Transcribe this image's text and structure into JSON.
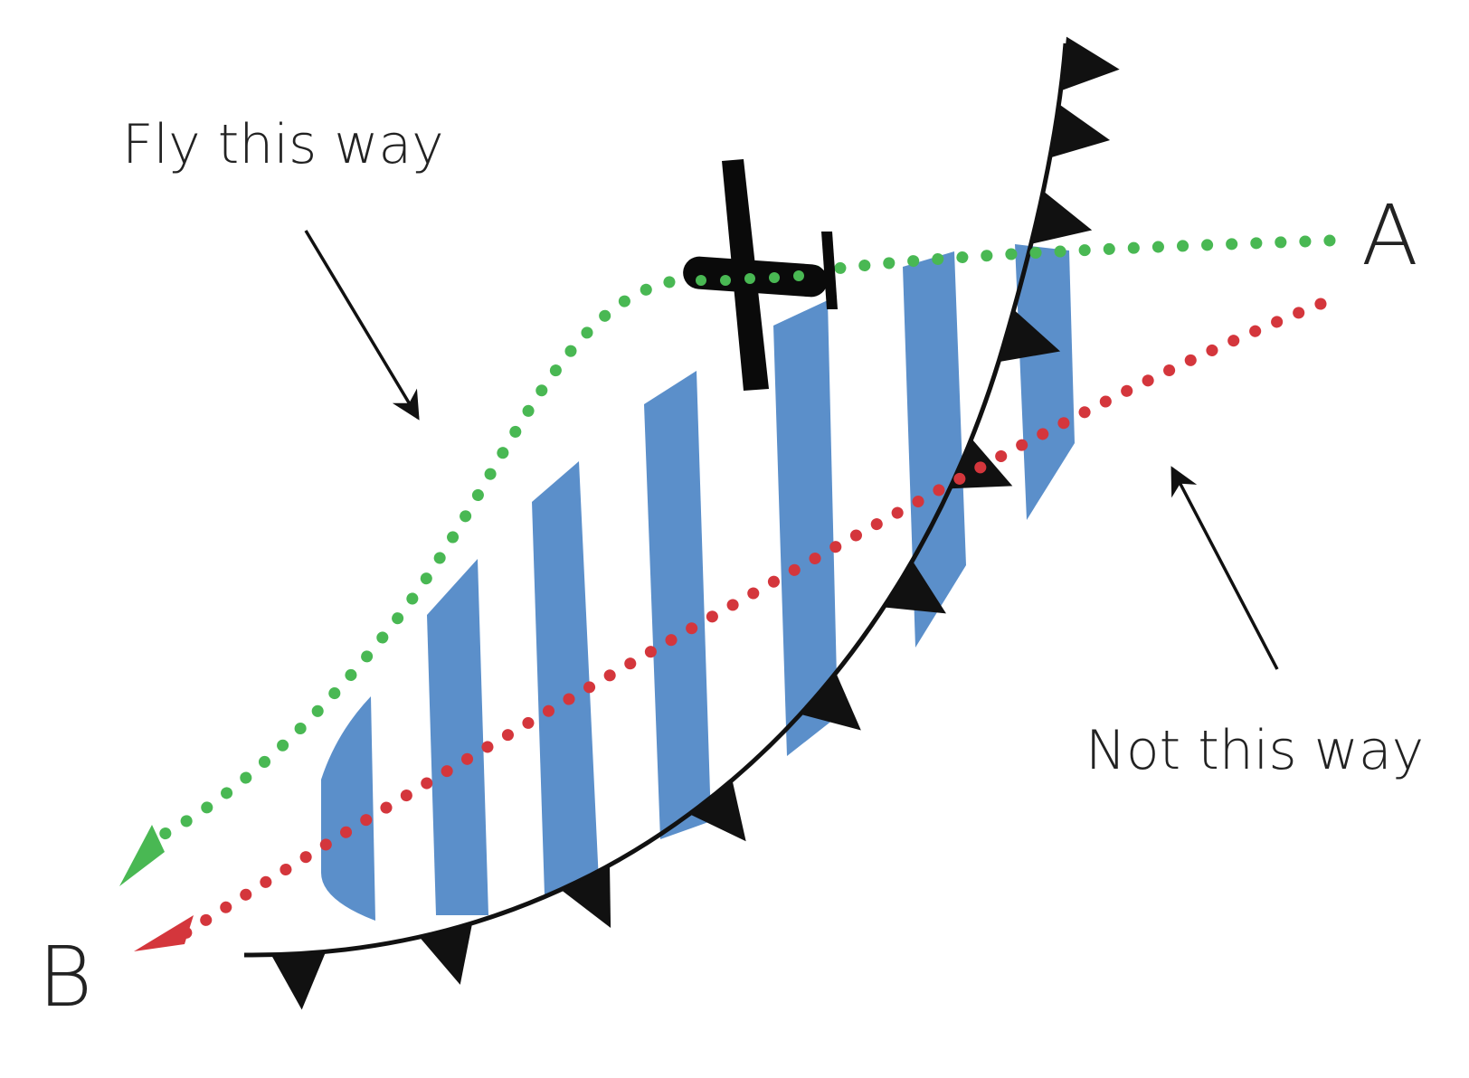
{
  "labels": {
    "fly_this_way": "Fly this way",
    "not_this_way": "Not this way",
    "point_a": "A",
    "point_b": "B"
  },
  "colors": {
    "good_route": "#49b853",
    "bad_route": "#d4363c",
    "weather_band": "#5b8fca",
    "front_line": "#111111",
    "aircraft": "#0a0a0a",
    "text": "#222222"
  },
  "icons": {
    "aircraft": "airplane-icon",
    "front": "cold-front-symbol"
  }
}
